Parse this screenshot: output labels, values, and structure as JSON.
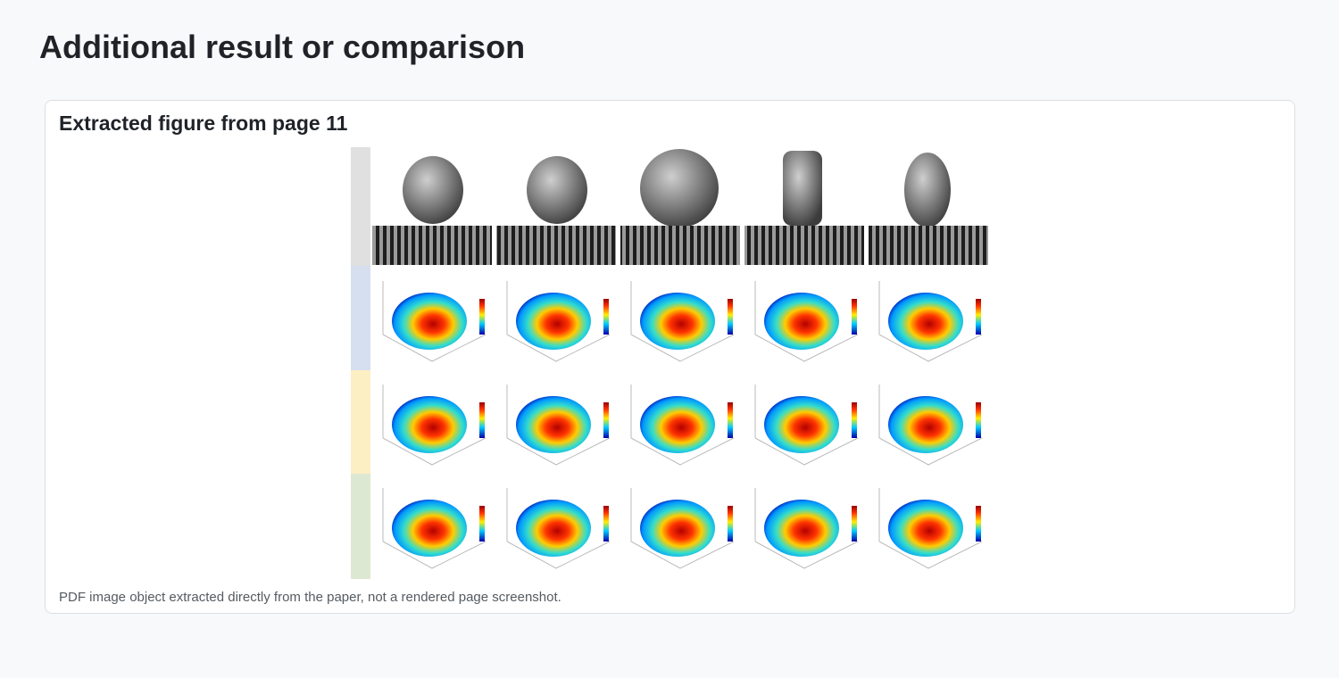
{
  "header": {
    "title": "Additional result or comparison"
  },
  "figure": {
    "title": "Extracted figure from page 11",
    "caption": "PDF image object extracted directly from the paper, not a rendered page screenshot."
  }
}
